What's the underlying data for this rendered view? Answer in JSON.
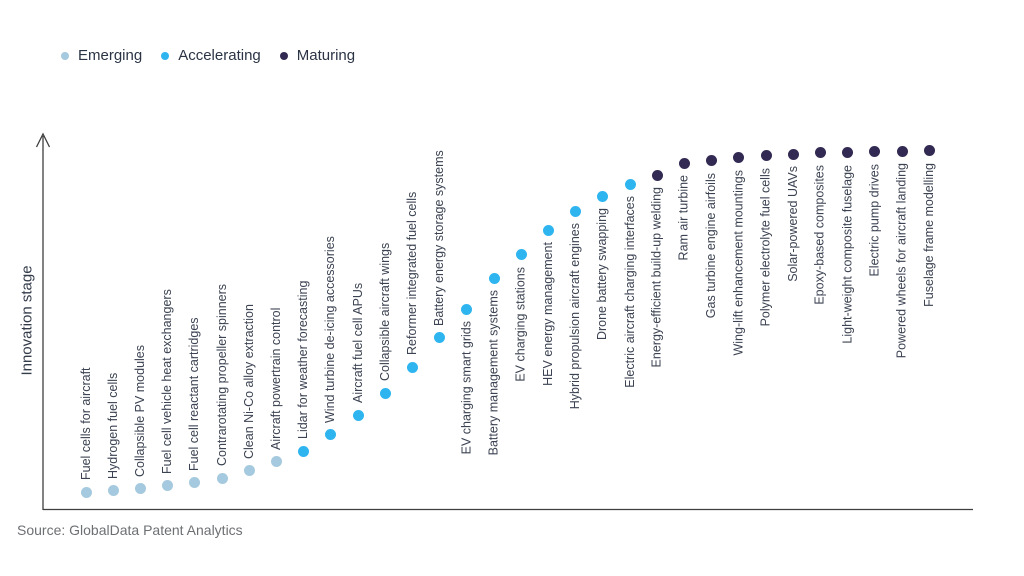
{
  "legend": {
    "items": [
      {
        "label": "Emerging",
        "color": "#a5c9de"
      },
      {
        "label": "Accelerating",
        "color": "#2eb5f0"
      },
      {
        "label": "Maturing",
        "color": "#322a52"
      }
    ]
  },
  "y_axis_label": "Innovation stage",
  "source_text": "Source: GlobalData Patent Analytics",
  "chart_data": {
    "type": "scatter",
    "title": "",
    "xlabel": "",
    "ylabel": "Innovation stage",
    "grid": false,
    "legend_position": "top-left",
    "y_axis": {
      "tick_labels": "none",
      "arrow": true,
      "value_units": "estimated % of axis height (no ticks shown in chart)"
    },
    "stages": [
      "Emerging",
      "Accelerating",
      "Maturing"
    ],
    "stage_colors": {
      "Emerging": "#a5c9de",
      "Accelerating": "#2eb5f0",
      "Maturing": "#322a52"
    },
    "points": [
      {
        "label": "Fuel cells for aircraft",
        "stage": "Emerging",
        "value": 4.6
      },
      {
        "label": "Hydrogen fuel cells",
        "stage": "Emerging",
        "value": 5.0
      },
      {
        "label": "Collapsible PV modules",
        "stage": "Emerging",
        "value": 5.5
      },
      {
        "label": "Fuel cell vehicle heat exchangers",
        "stage": "Emerging",
        "value": 6.3
      },
      {
        "label": "Fuel cell reactant cartridges",
        "stage": "Emerging",
        "value": 7.1
      },
      {
        "label": "Contrarotating propeller spinners",
        "stage": "Emerging",
        "value": 8.4
      },
      {
        "label": "Clean Ni-Co alloy extraction",
        "stage": "Emerging",
        "value": 10.3
      },
      {
        "label": "Aircraft powertrain control",
        "stage": "Emerging",
        "value": 12.7
      },
      {
        "label": "Lidar for weather forecasting",
        "stage": "Accelerating",
        "value": 15.6
      },
      {
        "label": "Wind turbine de-icing accessories",
        "stage": "Accelerating",
        "value": 19.9
      },
      {
        "label": "Aircraft fuel cell APUs",
        "stage": "Accelerating",
        "value": 25.2
      },
      {
        "label": "Collapsible aircraft wings",
        "stage": "Accelerating",
        "value": 31.1
      },
      {
        "label": "Reformer integrated fuel cells",
        "stage": "Accelerating",
        "value": 38.0
      },
      {
        "label": "Battery energy storage systems",
        "stage": "Accelerating",
        "value": 45.8
      },
      {
        "label": "EV charging smart grids",
        "stage": "Accelerating",
        "value": 53.5
      },
      {
        "label": "Battery management systems",
        "stage": "Accelerating",
        "value": 61.8
      },
      {
        "label": "EV charging stations",
        "stage": "Accelerating",
        "value": 68.0
      },
      {
        "label": "HEV energy management",
        "stage": "Accelerating",
        "value": 74.6
      },
      {
        "label": "Hybrid propulsion aircraft engines",
        "stage": "Accelerating",
        "value": 79.7
      },
      {
        "label": "Drone battery swapping",
        "stage": "Accelerating",
        "value": 83.7
      },
      {
        "label": "Electric aircraft charging interfaces",
        "stage": "Accelerating",
        "value": 86.9
      },
      {
        "label": "Energy-efficient build-up welding",
        "stage": "Maturing",
        "value": 89.3
      },
      {
        "label": "Ram air turbine",
        "stage": "Maturing",
        "value": 92.5
      },
      {
        "label": "Gas turbine engine airfoils",
        "stage": "Maturing",
        "value": 93.1
      },
      {
        "label": "Wing-lift enhancement mountings",
        "stage": "Maturing",
        "value": 93.9
      },
      {
        "label": "Polymer electrolyte fuel cells",
        "stage": "Maturing",
        "value": 94.4
      },
      {
        "label": "Solar-powered UAVs",
        "stage": "Maturing",
        "value": 94.9
      },
      {
        "label": "Epoxy-based composites",
        "stage": "Maturing",
        "value": 95.2
      },
      {
        "label": "Light-weight composite fuselage",
        "stage": "Maturing",
        "value": 95.3
      },
      {
        "label": "Electric pump drives",
        "stage": "Maturing",
        "value": 95.5
      },
      {
        "label": "Powered wheels for aircraft landing",
        "stage": "Maturing",
        "value": 95.6
      },
      {
        "label": "Fuselage frame modelling",
        "stage": "Maturing",
        "value": 95.8
      }
    ]
  }
}
